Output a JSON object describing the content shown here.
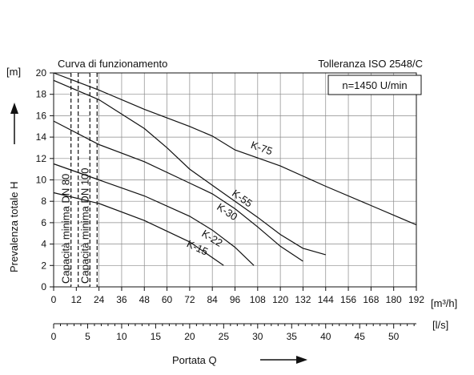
{
  "chart_data": {
    "type": "line",
    "title": "Curva di funzionamento",
    "tolerance": "Tolleranza ISO 2548/C",
    "speed": "n=1450 U/min",
    "ylabel": "Prevalenza totale  H",
    "yunit": "[m]",
    "xlabel": "Portata  Q",
    "xunit": "[m³/h]",
    "x2unit": "[l/s]",
    "xlim": [
      0,
      192
    ],
    "ylim": [
      0,
      20
    ],
    "xticks": [
      "0",
      "12",
      "24",
      "36",
      "48",
      "60",
      "72",
      "84",
      "96",
      "108",
      "120",
      "132",
      "144",
      "156",
      "168",
      "180",
      "192"
    ],
    "yticks": [
      "0",
      "2",
      "4",
      "6",
      "8",
      "10",
      "12",
      "14",
      "16",
      "18",
      "20"
    ],
    "x2ticks": [
      "0",
      "5",
      "10",
      "15",
      "20",
      "25",
      "30",
      "35",
      "40",
      "45",
      "50"
    ],
    "grid": true,
    "min_capacity_lines": [
      {
        "label": "Capacità minima DN 80",
        "x": 13
      },
      {
        "label": "Capacità minima DN 100",
        "x": 23
      }
    ],
    "series": [
      {
        "name": "K-75",
        "x": [
          0,
          12,
          24,
          48,
          72,
          84,
          96,
          120,
          144,
          168,
          192
        ],
        "y": [
          20,
          19.2,
          18.4,
          16.6,
          15,
          14.1,
          12.8,
          11.3,
          9.4,
          7.6,
          5.8
        ]
      },
      {
        "name": "K-55",
        "x": [
          0,
          12,
          24,
          48,
          60,
          72,
          84,
          96,
          108,
          120,
          132,
          144
        ],
        "y": [
          19.3,
          18.4,
          17.5,
          14.8,
          13,
          11,
          9.5,
          8,
          6.5,
          4.9,
          3.6,
          3
        ]
      },
      {
        "name": "K-30",
        "x": [
          0,
          24,
          48,
          72,
          84,
          96,
          108,
          120,
          132
        ],
        "y": [
          15.5,
          13.3,
          11.7,
          9.7,
          8.7,
          7.3,
          5.6,
          3.8,
          2.4
        ]
      },
      {
        "name": "K-22",
        "x": [
          0,
          24,
          48,
          72,
          84,
          96,
          106
        ],
        "y": [
          11.5,
          10,
          8.5,
          6.6,
          5.3,
          3.7,
          2
        ]
      },
      {
        "name": "K-15",
        "x": [
          0,
          24,
          48,
          72,
          90
        ],
        "y": [
          8.8,
          7.8,
          6.2,
          4.2,
          2
        ]
      }
    ],
    "curve_labels": [
      {
        "series": "K-75",
        "text": "K-75"
      },
      {
        "series": "K-55",
        "text": "K-55"
      },
      {
        "series": "K-30",
        "text": "K-30"
      },
      {
        "series": "K-22",
        "text": "K-22"
      },
      {
        "series": "K-15",
        "text": "K-15"
      }
    ]
  }
}
